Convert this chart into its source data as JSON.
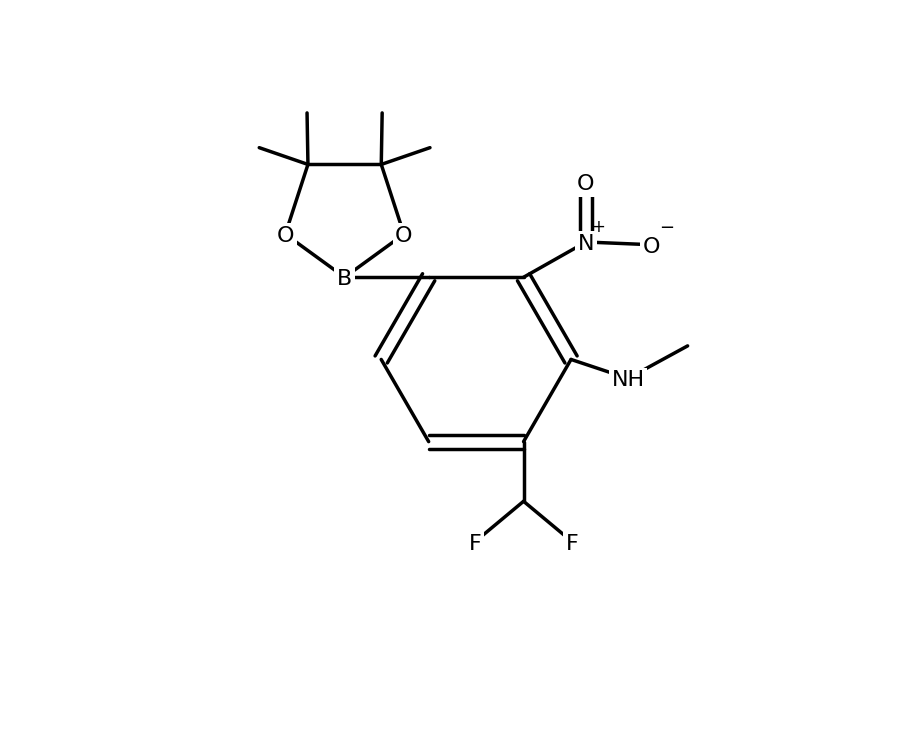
{
  "background_color": "#ffffff",
  "line_color": "#000000",
  "line_width": 2.5,
  "font_size": 16,
  "figsize": [
    8.98,
    7.46
  ],
  "dpi": 100,
  "xlim": [
    -1.5,
    11.5
  ],
  "ylim": [
    -4.5,
    9.0
  ]
}
